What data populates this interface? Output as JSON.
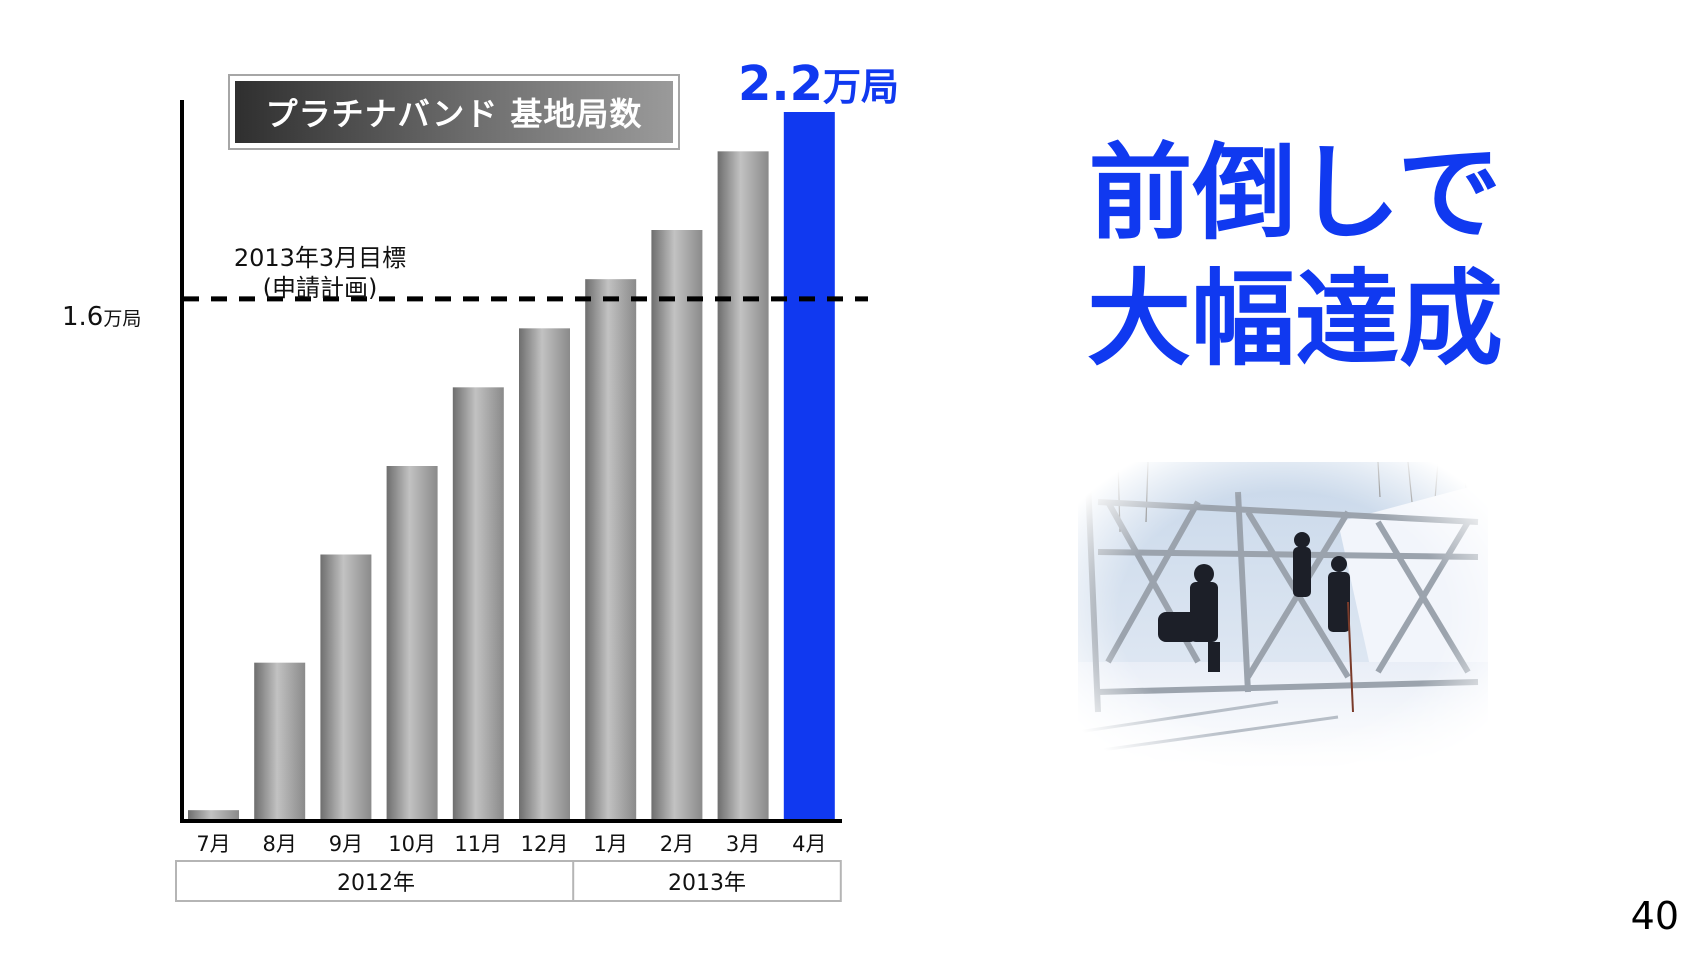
{
  "chart_data": {
    "type": "bar",
    "title": "プラチナバンド 基地局数",
    "categories": [
      "7月",
      "8月",
      "9月",
      "10月",
      "11月",
      "12月",
      "1月",
      "2月",
      "3月",
      "4月"
    ],
    "values": [
      0.1,
      1.6,
      2.7,
      3.6,
      4.4,
      5.0,
      5.5,
      6.0,
      6.8,
      7.2
    ],
    "highlight_index": 9,
    "highlight_label": {
      "value": "2.2",
      "unit": "万局"
    },
    "year_groups": [
      {
        "label": "2012年",
        "start": 0,
        "end": 5
      },
      {
        "label": "2013年",
        "start": 6,
        "end": 9
      }
    ],
    "reference_line": {
      "value": 5.3,
      "label_line1": "2013年3月目標",
      "label_line2": "(申請計画)",
      "tick_value": "1.6",
      "tick_unit": "万局",
      "style": "dashed"
    },
    "ylim": [
      0,
      7.2
    ],
    "grid": false,
    "colors": {
      "bar": "gray-gradient",
      "highlight": "#1039f0",
      "reference": "#000000"
    }
  },
  "headline": {
    "line1": "前倒しで",
    "line2": "大幅達成"
  },
  "photo": {
    "subject": "workers assembling steel transmission tower in snow"
  },
  "page_number": "40",
  "colors": {
    "accent": "#1039f0"
  }
}
